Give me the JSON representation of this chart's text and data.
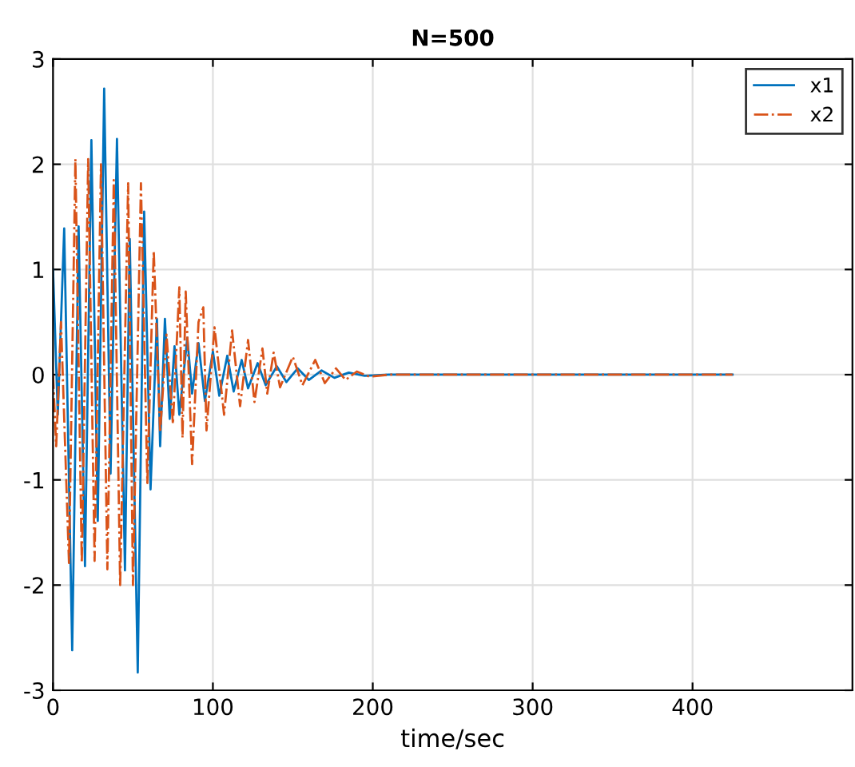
{
  "chart_data": {
    "type": "line",
    "title": "N=500",
    "xlabel": "time/sec",
    "xlim": [
      0,
      500
    ],
    "ylim": [
      -3,
      3
    ],
    "xticks": [
      0,
      100,
      200,
      300,
      400
    ],
    "yticks": [
      -3,
      -2,
      -1,
      0,
      1,
      2,
      3
    ],
    "grid": true,
    "legend": "top right",
    "series": [
      {
        "name": "x1",
        "color": "#0072bd",
        "line_style": "solid",
        "x": [
          0,
          3,
          7,
          12,
          16,
          20,
          24,
          28,
          32,
          36,
          40,
          45,
          48,
          53,
          57,
          61,
          65,
          67,
          70,
          73,
          76,
          79,
          84,
          87,
          91,
          95,
          100,
          104,
          109,
          113,
          118,
          122,
          128,
          133,
          140,
          146,
          153,
          160,
          168,
          176,
          185,
          195,
          210,
          425
        ],
        "values": [
          1.0,
          -0.38,
          1.39,
          -2.62,
          1.41,
          -1.82,
          2.23,
          -1.39,
          2.72,
          -0.94,
          2.24,
          -1.86,
          1.29,
          -2.83,
          1.55,
          -1.09,
          0.53,
          -0.68,
          0.53,
          -0.42,
          0.27,
          -0.38,
          0.35,
          -0.18,
          0.3,
          -0.25,
          0.22,
          -0.2,
          0.18,
          -0.16,
          0.14,
          -0.13,
          0.11,
          -0.1,
          0.08,
          -0.07,
          0.06,
          -0.05,
          0.04,
          -0.03,
          0.02,
          -0.01,
          0,
          0
        ]
      },
      {
        "name": "x2",
        "color": "#d95319",
        "line_style": "dashdot",
        "x": [
          0,
          2,
          5,
          10,
          14,
          18,
          22,
          26,
          30,
          34,
          38,
          42,
          47,
          50,
          55,
          59,
          63,
          67,
          71,
          75,
          79,
          81,
          83,
          87,
          91,
          94,
          96,
          101,
          107,
          112,
          117,
          122,
          126,
          131,
          134,
          138,
          142,
          150,
          156,
          164,
          170,
          177,
          183,
          190,
          198,
          210,
          425
        ],
        "values": [
          0,
          -0.68,
          0.5,
          -1.79,
          2.05,
          -1.79,
          2.05,
          -1.77,
          2.0,
          -1.85,
          1.85,
          -2.0,
          1.82,
          -2.0,
          1.82,
          -1.03,
          1.18,
          -0.55,
          0.38,
          -0.47,
          0.83,
          -0.6,
          0.79,
          -0.85,
          0.5,
          0.64,
          -0.53,
          0.45,
          -0.38,
          0.42,
          -0.3,
          0.33,
          -0.26,
          0.25,
          -0.18,
          0.21,
          -0.12,
          0.17,
          -0.1,
          0.14,
          -0.08,
          0.06,
          -0.05,
          0.03,
          -0.02,
          0,
          0
        ]
      }
    ]
  }
}
